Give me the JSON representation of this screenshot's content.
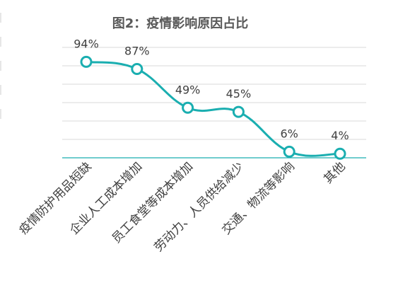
{
  "chart_data": {
    "type": "line",
    "title": "图2：疫情影响原因占比",
    "categories": [
      "疫情防护用品短缺",
      "企业人工成本增加",
      "员工食堂等成本增加",
      "劳动力、人员供给减少",
      "交通、物流等影响",
      "其他"
    ],
    "values": [
      94,
      87,
      49,
      45,
      6,
      4
    ],
    "data_labels": [
      "94%",
      "87%",
      "49%",
      "45%",
      "6%",
      "4%"
    ],
    "ylim": [
      0,
      100
    ],
    "grid": true,
    "legend": "none",
    "colors": {
      "line": "#1aaeb0",
      "marker_fill": "#ffffff",
      "grid": "#d9d9d9",
      "baseline": "#1aaeb0",
      "text": "#404040",
      "title": "#595959"
    }
  }
}
